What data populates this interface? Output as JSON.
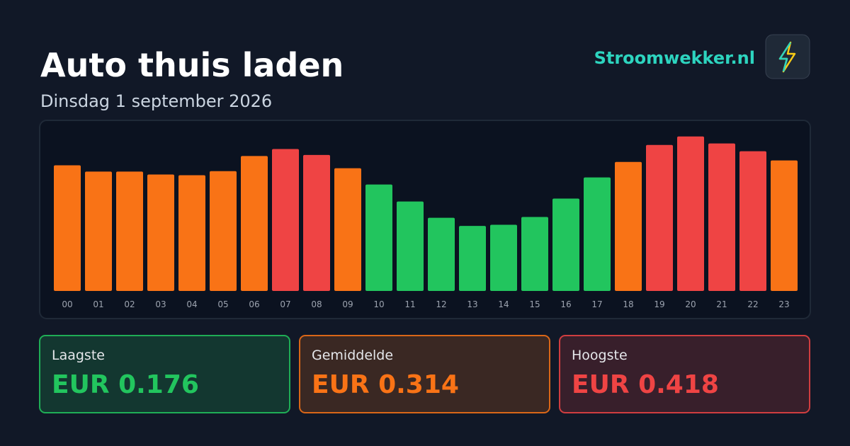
{
  "chart_data": {
    "type": "bar",
    "title": "Auto thuis laden",
    "subtitle": "Dinsdag 1 september 2026",
    "brand": "Stroomwekker.nl",
    "categories": [
      "00",
      "01",
      "02",
      "03",
      "04",
      "05",
      "06",
      "07",
      "08",
      "09",
      "10",
      "11",
      "12",
      "13",
      "14",
      "15",
      "16",
      "17",
      "18",
      "19",
      "20",
      "21",
      "22",
      "23"
    ],
    "values": [
      0.34,
      0.323,
      0.323,
      0.315,
      0.313,
      0.324,
      0.365,
      0.384,
      0.368,
      0.332,
      0.288,
      0.242,
      0.198,
      0.176,
      0.179,
      0.2,
      0.25,
      0.307,
      0.349,
      0.395,
      0.418,
      0.399,
      0.378,
      0.353
    ],
    "colors": [
      "#f97316",
      "#f97316",
      "#f97316",
      "#f97316",
      "#f97316",
      "#f97316",
      "#f97316",
      "#ef4444",
      "#ef4444",
      "#f97316",
      "#22c55e",
      "#22c55e",
      "#22c55e",
      "#22c55e",
      "#22c55e",
      "#22c55e",
      "#22c55e",
      "#22c55e",
      "#f97316",
      "#ef4444",
      "#ef4444",
      "#ef4444",
      "#ef4444",
      "#f97316"
    ],
    "ylim": [
      0,
      0.45
    ],
    "stats": [
      {
        "label": "Laagste",
        "value": "EUR 0.176",
        "color": "#22c55e"
      },
      {
        "label": "Gemiddelde",
        "value": "EUR 0.314",
        "color": "#f97316"
      },
      {
        "label": "Hoogste",
        "value": "EUR 0.418",
        "color": "#ef4444"
      }
    ]
  }
}
